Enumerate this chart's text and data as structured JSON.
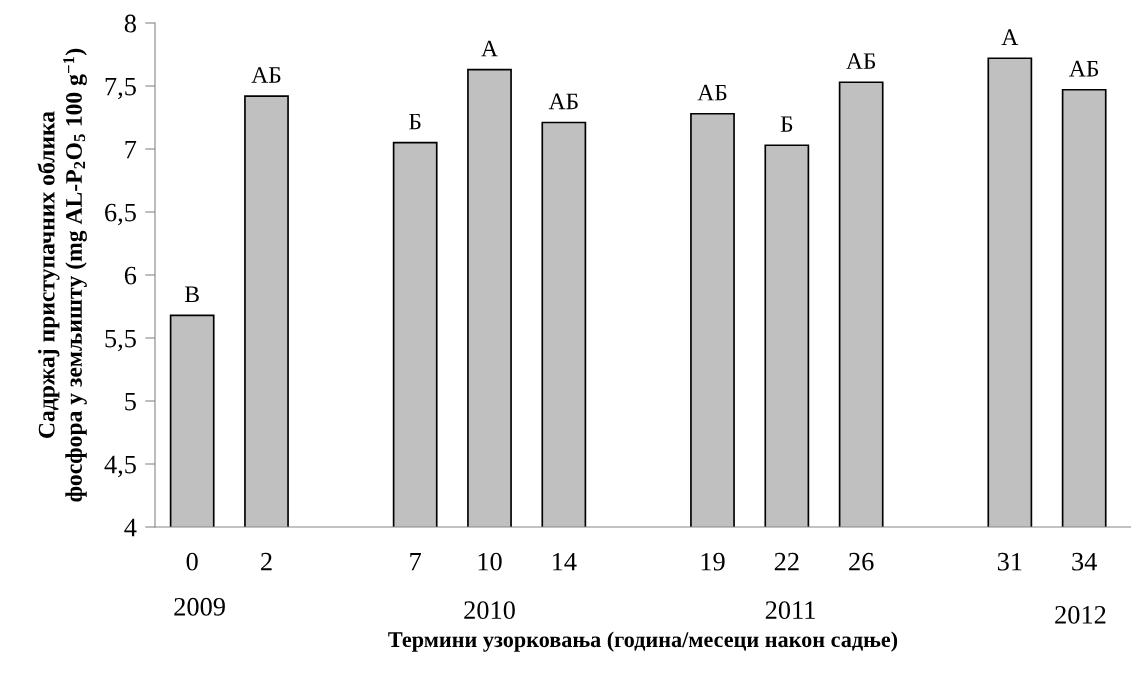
{
  "chart_data": {
    "type": "bar",
    "xlabel": "Термини узорковања (година/месеци након садње)",
    "ylabel": "Садржај приступачних облика\nфосфора у земљишту (mg AL-P$_{2}$O$_{5}$ 100 g$^{−1}$)",
    "categories": [
      "0",
      "2",
      null,
      "7",
      "10",
      "14",
      null,
      "19",
      "22",
      "26",
      null,
      "31",
      "34"
    ],
    "values": [
      5.68,
      7.42,
      null,
      7.05,
      7.63,
      7.21,
      null,
      7.28,
      7.03,
      7.53,
      null,
      7.72,
      7.47
    ],
    "value_labels": [
      "В",
      "АБ",
      null,
      "Б",
      "А",
      "АБ",
      null,
      "АБ",
      "Б",
      "АБ",
      null,
      "А",
      "АБ"
    ],
    "color": "#c0c0c0",
    "annotations": [
      "2009",
      "2010",
      "2011",
      "2012"
    ],
    "ylim": [
      4,
      8
    ],
    "yticks": [
      4,
      {
        "value": 4.5,
        "label": "4,5"
      },
      5,
      {
        "value": 5.5,
        "label": "5,5"
      },
      6,
      {
        "value": 6.5,
        "label": "6,5"
      },
      7,
      {
        "value": 7.5,
        "label": "7,5"
      },
      8
    ],
    "grid": false,
    "legend": false
  }
}
